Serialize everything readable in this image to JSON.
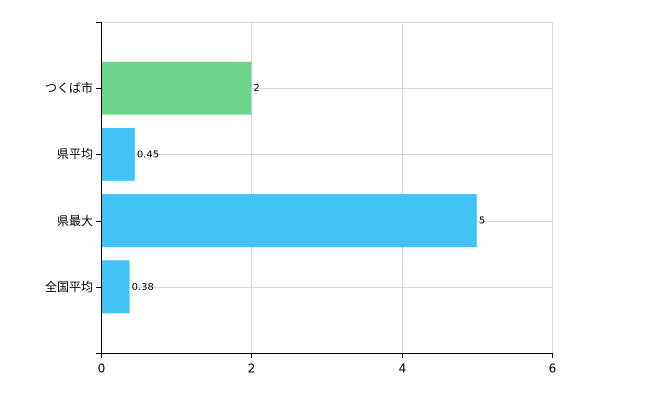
{
  "chart_data": {
    "type": "bar",
    "orientation": "horizontal",
    "categories": [
      "つくば市",
      "県平均",
      "県最大",
      "全国平均"
    ],
    "values": [
      2,
      0.45,
      5,
      0.38
    ],
    "colors": [
      "#6ed38b",
      "#41c3f5",
      "#41c3f5",
      "#41c3f5"
    ],
    "xlim": [
      0,
      6
    ],
    "xticks": [
      0,
      2,
      4,
      6
    ],
    "grid": true
  }
}
